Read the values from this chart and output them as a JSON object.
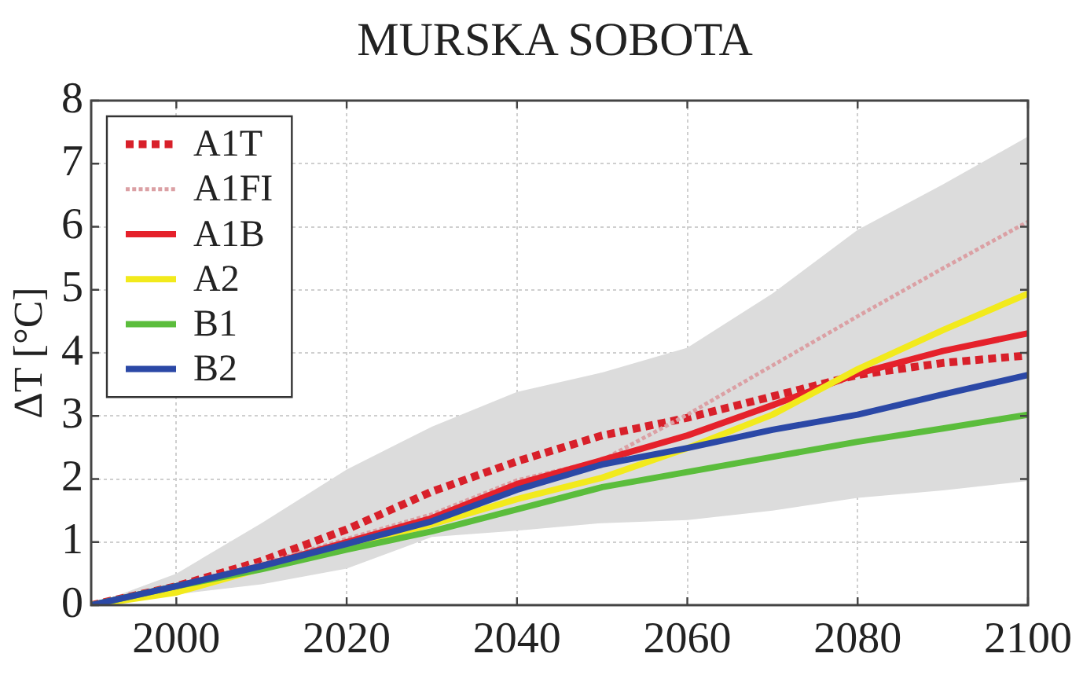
{
  "chart_data": {
    "type": "line",
    "title": "MURSKA SOBOTA",
    "ylabel": "ΔT [°C]",
    "x": [
      1990,
      2000,
      2010,
      2020,
      2030,
      2040,
      2050,
      2060,
      2070,
      2080,
      2090,
      2100
    ],
    "series": [
      {
        "color": "#dcdcdc",
        "values": [
          null,
          null,
          null,
          null,
          null,
          null,
          null,
          null,
          null,
          null,
          null,
          null
        ],
        "lower": [
          0,
          0.17,
          0.33,
          0.58,
          1.08,
          1.18,
          1.3,
          1.35,
          1.5,
          1.7,
          1.82,
          1.97
        ],
        "upper": [
          0,
          0.5,
          1.3,
          2.15,
          2.83,
          3.38,
          3.69,
          4.08,
          4.94,
          5.95,
          6.67,
          7.43
        ]
      },
      {
        "name": "A1T",
        "color": "#d8202a",
        "line_style": "dotted",
        "values": [
          0,
          0.3,
          0.7,
          1.2,
          1.8,
          2.28,
          2.69,
          2.97,
          3.31,
          3.65,
          3.84,
          3.96
        ]
      },
      {
        "name": "A1FI",
        "color": "#dba0a4",
        "line_style": "dotted",
        "values": [
          0,
          0.3,
          0.65,
          1.05,
          1.44,
          1.98,
          2.3,
          3.02,
          3.8,
          4.58,
          5.34,
          6.08
        ]
      },
      {
        "name": "A1B",
        "color": "#e5212b",
        "values": [
          0,
          0.3,
          0.62,
          1.0,
          1.38,
          1.92,
          2.3,
          2.69,
          3.17,
          3.67,
          4.03,
          4.31
        ]
      },
      {
        "name": "A2",
        "color": "#f2ea1c",
        "values": [
          0,
          0.2,
          0.58,
          0.95,
          1.28,
          1.68,
          2.02,
          2.49,
          3.02,
          3.74,
          4.36,
          4.94
        ]
      },
      {
        "name": "B1",
        "color": "#5bbd3c",
        "values": [
          0,
          0.3,
          0.57,
          0.88,
          1.17,
          1.52,
          1.87,
          2.11,
          2.35,
          2.59,
          2.8,
          3.02
        ]
      },
      {
        "name": "B2",
        "color": "#2b48a6",
        "values": [
          0,
          0.3,
          0.62,
          0.97,
          1.33,
          1.83,
          2.23,
          2.49,
          2.78,
          3.02,
          3.34,
          3.65
        ]
      }
    ],
    "xlim": [
      1990,
      2100
    ],
    "xticks": [
      2000,
      2020,
      2040,
      2060,
      2080,
      2100
    ],
    "ylim": [
      0,
      8
    ],
    "yticks": [
      0,
      1,
      2,
      3,
      4,
      5,
      6,
      7,
      8
    ],
    "grid": true,
    "legend": "top left",
    "line_style": "solid",
    "marker": "none"
  }
}
